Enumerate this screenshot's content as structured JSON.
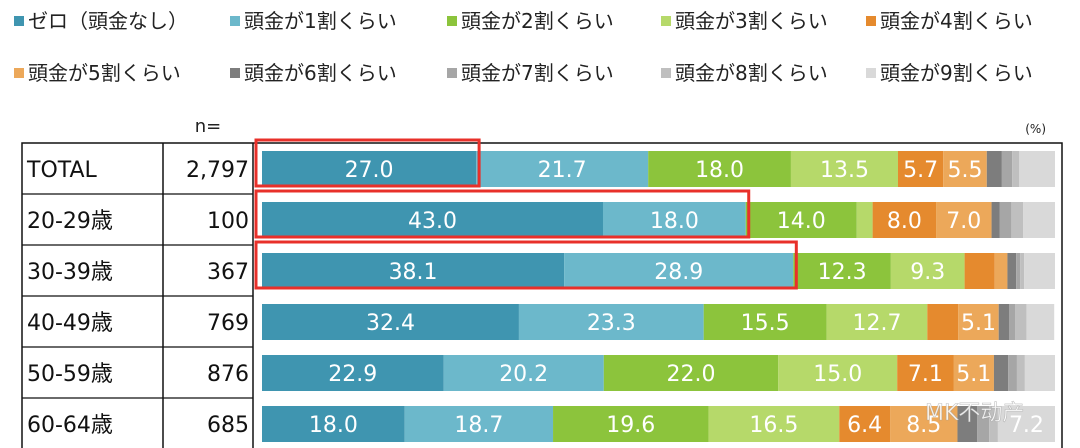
{
  "chart_data": {
    "type": "bar",
    "orientation": "horizontal-stacked-100",
    "unit_label": "(%)",
    "n_header": "n=",
    "legend_placement": "top",
    "categories": [
      "TOTAL",
      "20-29歳",
      "30-39歳",
      "40-49歳",
      "50-59歳",
      "60-64歳"
    ],
    "n": [
      "2,797",
      "100",
      "367",
      "769",
      "876",
      "685"
    ],
    "series": [
      {
        "name": "ゼロ（頭金なし）",
        "color": "#3f95b0",
        "values": [
          27.0,
          43.0,
          38.1,
          32.4,
          22.9,
          18.0
        ]
      },
      {
        "name": "頭金が1割くらい",
        "color": "#6cb8cb",
        "values": [
          21.7,
          18.0,
          28.9,
          23.3,
          20.2,
          18.7
        ]
      },
      {
        "name": "頭金が2割くらい",
        "color": "#8cc43c",
        "values": [
          18.0,
          14.0,
          12.3,
          15.5,
          22.0,
          19.6
        ]
      },
      {
        "name": "頭金が3割くらい",
        "color": "#b6d96a",
        "values": [
          13.5,
          2.0,
          9.3,
          12.7,
          15.0,
          16.5
        ]
      },
      {
        "name": "頭金が4割くらい",
        "color": "#e58a2e",
        "values": [
          5.7,
          8.0,
          3.8,
          3.9,
          7.1,
          6.4
        ]
      },
      {
        "name": "頭金が5割くらい",
        "color": "#eca85a",
        "values": [
          5.5,
          7.0,
          1.6,
          5.1,
          5.1,
          8.5
        ]
      },
      {
        "name": "頭金が6割くらい",
        "color": "#7d7d7d",
        "values": [
          1.9,
          1.0,
          1.1,
          1.3,
          1.8,
          2.5
        ]
      },
      {
        "name": "頭金が7割くらい",
        "color": "#a6a6a6",
        "values": [
          1.3,
          1.5,
          0.5,
          0.8,
          1.1,
          1.5
        ]
      },
      {
        "name": "頭金が8割くらい",
        "color": "#bfbfbf",
        "values": [
          0.9,
          1.5,
          0.5,
          1.4,
          1.0,
          1.1
        ]
      },
      {
        "name": "頭金が9割くらい",
        "color": "#d9d9d9",
        "values": [
          4.5,
          4.0,
          3.9,
          3.5,
          3.8,
          7.2
        ]
      }
    ],
    "xlim": [
      0,
      100
    ],
    "data_labels_min": 5,
    "highlight_color": "#e8302a",
    "highlights": [
      {
        "row": "TOTAL",
        "segments": 1
      },
      {
        "row": "20-29歳",
        "segments": 2
      },
      {
        "row": "30-39歳",
        "segments": 2
      }
    ]
  },
  "watermark": "MK不动产"
}
